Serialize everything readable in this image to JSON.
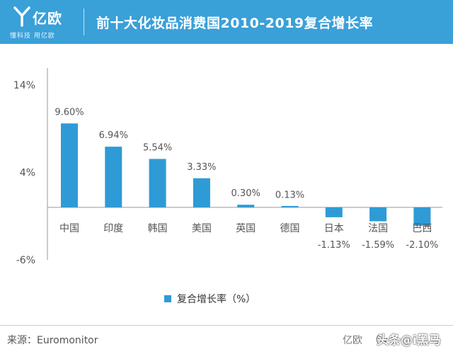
{
  "header": {
    "logo_name": "亿欧",
    "logo_slogan": "懂科技 用亿欧",
    "title": "前十大化妆品消费国2010-2019复合增长率"
  },
  "chart_data": {
    "type": "bar",
    "title": "前十大化妆品消费国2010-2019复合增长率",
    "categories": [
      "中国",
      "印度",
      "韩国",
      "美国",
      "英国",
      "德国",
      "日本",
      "法国",
      "巴西"
    ],
    "series": [
      {
        "name": "复合增长率（%）",
        "values": [
          9.6,
          6.94,
          5.54,
          3.33,
          0.3,
          0.13,
          -1.13,
          -1.59,
          -2.1
        ]
      }
    ],
    "data_labels": [
      "9.60%",
      "6.94%",
      "5.54%",
      "3.33%",
      "0.30%",
      "0.13%",
      "-1.13%",
      "-1.59%",
      "-2.10%"
    ],
    "yticks": [
      14,
      4,
      -6
    ],
    "ytick_labels": [
      "14%",
      "4%",
      "-6%"
    ],
    "ylim": [
      -6,
      14
    ],
    "xlabel": "",
    "ylabel": "",
    "grid": false,
    "legend_position": "bottom",
    "bar_color": "#2e9bd6"
  },
  "legend": {
    "label": "复合增长率（%）"
  },
  "footer": {
    "source": "来源：Euromonitor",
    "brand": "亿欧",
    "url_fragment": "（w",
    "watermark": "头条@i黑马"
  },
  "colors": {
    "header_bg": "#3aa0d8",
    "bar": "#2e9bd6"
  }
}
